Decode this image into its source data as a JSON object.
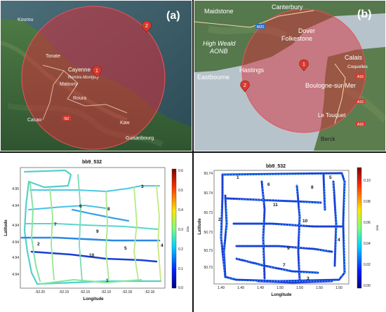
{
  "panels": {
    "a": {
      "letter": "(a)",
      "places": {
        "kourou": "Kourou",
        "cayenne": "Cayenne",
        "remire": "Remire-Montjoly",
        "matoury": "Matoury",
        "roura": "Roura",
        "cacao": "Cacao",
        "kaw": "Kaw",
        "guisanbourg": "Guisanbourg",
        "tonate": "Tonate"
      },
      "markers": [
        "1",
        "2"
      ],
      "road": "N2"
    },
    "b": {
      "letter": "(b)",
      "places": {
        "maidstone": "Maidstone",
        "canterbury": "Canterbury",
        "dover": "Dover",
        "folkestone": "Folkestone",
        "highweald": "High Weald",
        "aonb": "AONB",
        "hastings": "Hastings",
        "eastbourne": "Eastbourne",
        "calais": "Calais",
        "coquelles": "Coquelles",
        "boulogne": "Boulogne-sur-Mer",
        "letouquet": "Le Touquet",
        "berck": "Berck"
      },
      "markers": [
        "1",
        "2"
      ],
      "roads": [
        "M20",
        "A16",
        "A16",
        "A16"
      ]
    },
    "c": {
      "title": "bb9_532",
      "xlabel": "Longitude",
      "ylabel": "Latitude",
      "xticks": [
        "-52.20",
        "-52.19",
        "-52.19",
        "-52.19",
        "-52.18",
        "-52.18"
      ],
      "yticks": [
        "4.95",
        "4.94",
        "4.94",
        "4.94",
        "4.94",
        "4.94"
      ],
      "cbar_ticks": [
        "0.6",
        "0.5",
        "0.4",
        "0.3",
        "0.2",
        "0.1",
        "0.0"
      ],
      "cbar_unit": "1/ns",
      "track_labels": [
        "1",
        "2",
        "3",
        "4",
        "5",
        "6",
        "7",
        "8",
        "9",
        "10"
      ]
    },
    "d": {
      "title": "bb9_532",
      "xlabel": "Longitude",
      "ylabel": "Latitude",
      "xticks": [
        "1.49",
        "1.49",
        "1.49",
        "1.50",
        "1.50",
        "1.50",
        "1.50"
      ],
      "yticks": [
        "50.74",
        "50.74",
        "50.73",
        "50.73",
        "50.73",
        "50.73"
      ],
      "cbar_ticks": [
        "0.10",
        "0.08",
        "0.06",
        "0.04",
        "0.02",
        "0.00"
      ],
      "cbar_unit": "1/ns",
      "track_labels": [
        "1",
        "2",
        "3",
        "4",
        "5",
        "6",
        "7",
        "8",
        "9",
        "10",
        "11"
      ]
    }
  },
  "colors": {
    "circle_fill": "#d6303a",
    "marker": "#d83a2e",
    "sea_a": "#3a5a6a",
    "sea_b": "#b8c4cc",
    "land": "#3f6b3a"
  }
}
